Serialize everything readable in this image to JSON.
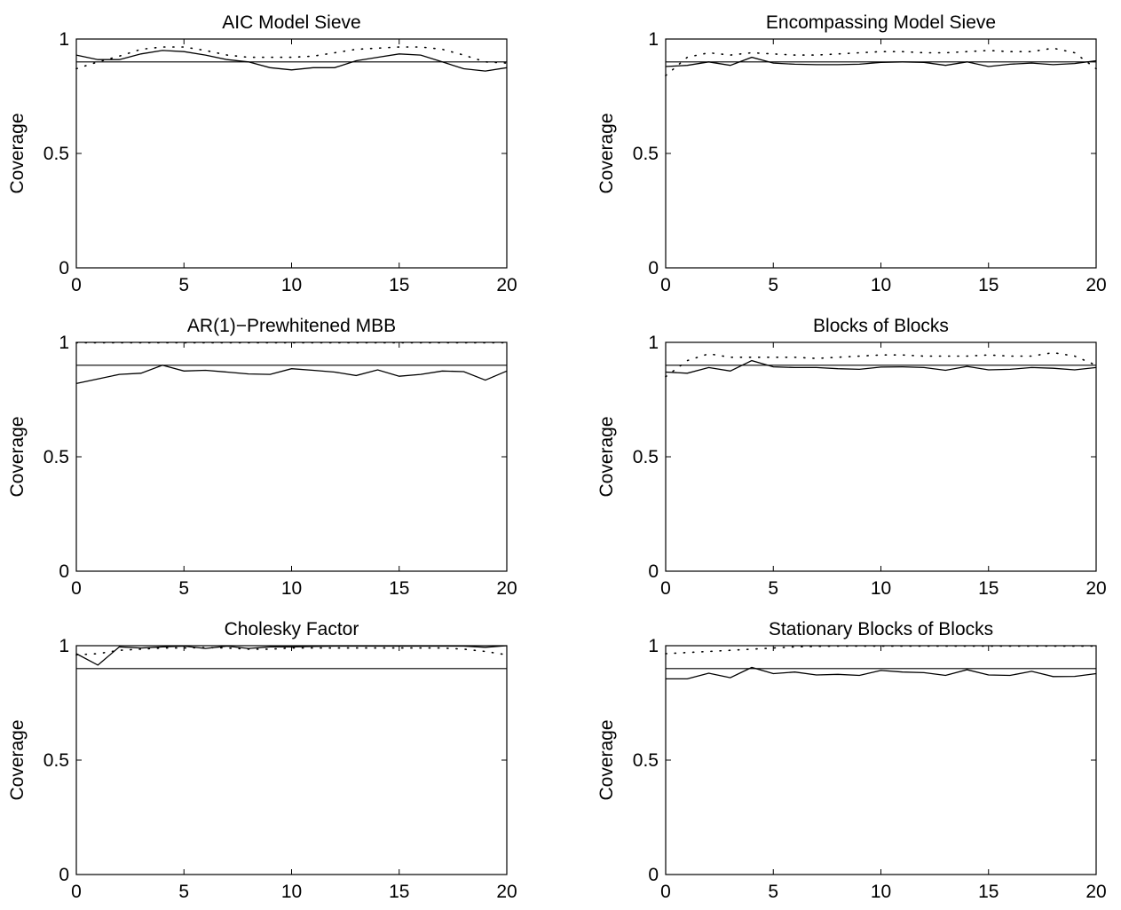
{
  "figure": {
    "background": "#ffffff",
    "line_color": "#000000"
  },
  "chart_data": [
    {
      "type": "line",
      "title": "AIC Model Sieve",
      "xlabel": "",
      "ylabel": "Coverage",
      "xlim": [
        0,
        20
      ],
      "ylim": [
        0,
        1
      ],
      "xticks": [
        "0",
        "5",
        "10",
        "15",
        "20"
      ],
      "yticks": [
        "0",
        "0.5",
        "1"
      ],
      "grid": false,
      "reference_line": 0.9,
      "series": [
        {
          "style": "solid",
          "x": [
            0,
            1,
            2,
            3,
            4,
            5,
            6,
            7,
            8,
            9,
            10,
            11,
            12,
            13,
            14,
            15,
            16,
            17,
            18,
            19,
            20
          ],
          "values": [
            0.93,
            0.91,
            0.91,
            0.935,
            0.95,
            0.945,
            0.93,
            0.91,
            0.9,
            0.875,
            0.865,
            0.875,
            0.875,
            0.905,
            0.92,
            0.935,
            0.93,
            0.9,
            0.87,
            0.86,
            0.875
          ]
        },
        {
          "style": "dotted",
          "x": [
            0,
            1,
            2,
            3,
            4,
            5,
            6,
            7,
            8,
            9,
            10,
            11,
            12,
            13,
            14,
            15,
            16,
            17,
            18,
            19,
            20
          ],
          "values": [
            0.87,
            0.9,
            0.925,
            0.955,
            0.965,
            0.965,
            0.95,
            0.93,
            0.92,
            0.92,
            0.92,
            0.925,
            0.94,
            0.955,
            0.96,
            0.965,
            0.965,
            0.955,
            0.93,
            0.9,
            0.895
          ]
        }
      ]
    },
    {
      "type": "line",
      "title": "Encompassing Model Sieve",
      "xlabel": "",
      "ylabel": "Coverage",
      "xlim": [
        0,
        20
      ],
      "ylim": [
        0,
        1
      ],
      "xticks": [
        "0",
        "5",
        "10",
        "15",
        "20"
      ],
      "yticks": [
        "0",
        "0.5",
        "1"
      ],
      "grid": false,
      "reference_line": 0.9,
      "series": [
        {
          "style": "solid",
          "x": [
            0,
            1,
            2,
            3,
            4,
            5,
            6,
            7,
            8,
            9,
            10,
            11,
            12,
            13,
            14,
            15,
            16,
            17,
            18,
            19,
            20
          ],
          "values": [
            0.88,
            0.885,
            0.9,
            0.885,
            0.92,
            0.895,
            0.89,
            0.888,
            0.888,
            0.89,
            0.898,
            0.9,
            0.898,
            0.885,
            0.9,
            0.88,
            0.89,
            0.895,
            0.888,
            0.893,
            0.905
          ]
        },
        {
          "style": "dotted",
          "x": [
            0,
            1,
            2,
            3,
            4,
            5,
            6,
            7,
            8,
            9,
            10,
            11,
            12,
            13,
            14,
            15,
            16,
            17,
            18,
            19,
            20
          ],
          "values": [
            0.84,
            0.92,
            0.94,
            0.93,
            0.94,
            0.935,
            0.93,
            0.93,
            0.935,
            0.94,
            0.945,
            0.945,
            0.94,
            0.94,
            0.945,
            0.95,
            0.945,
            0.945,
            0.96,
            0.94,
            0.87
          ]
        }
      ]
    },
    {
      "type": "line",
      "title": "AR(1)−Prewhitened MBB",
      "xlabel": "",
      "ylabel": "Coverage",
      "xlim": [
        0,
        20
      ],
      "ylim": [
        0,
        1
      ],
      "xticks": [
        "0",
        "5",
        "10",
        "15",
        "20"
      ],
      "yticks": [
        "0",
        "0.5",
        "1"
      ],
      "grid": false,
      "reference_line": 0.9,
      "series": [
        {
          "style": "solid",
          "x": [
            0,
            1,
            2,
            3,
            4,
            5,
            6,
            7,
            8,
            9,
            10,
            11,
            12,
            13,
            14,
            15,
            16,
            17,
            18,
            19,
            20
          ],
          "values": [
            0.82,
            0.84,
            0.86,
            0.865,
            0.9,
            0.875,
            0.878,
            0.87,
            0.862,
            0.86,
            0.885,
            0.878,
            0.87,
            0.855,
            0.88,
            0.852,
            0.86,
            0.875,
            0.872,
            0.835,
            0.875
          ]
        },
        {
          "style": "dotted",
          "x": [
            0,
            1,
            2,
            3,
            4,
            5,
            6,
            7,
            8,
            9,
            10,
            11,
            12,
            13,
            14,
            15,
            16,
            17,
            18,
            19,
            20
          ],
          "values": [
            0.998,
            0.998,
            0.998,
            0.998,
            0.998,
            0.998,
            0.998,
            0.998,
            0.998,
            0.998,
            0.998,
            0.998,
            0.998,
            0.998,
            0.998,
            0.998,
            0.998,
            0.998,
            0.998,
            0.998,
            0.998
          ]
        }
      ]
    },
    {
      "type": "line",
      "title": "Blocks of Blocks",
      "xlabel": "",
      "ylabel": "Coverage",
      "xlim": [
        0,
        20
      ],
      "ylim": [
        0,
        1
      ],
      "xticks": [
        "0",
        "5",
        "10",
        "15",
        "20"
      ],
      "yticks": [
        "0",
        "0.5",
        "1"
      ],
      "grid": false,
      "reference_line": 0.9,
      "series": [
        {
          "style": "solid",
          "x": [
            0,
            1,
            2,
            3,
            4,
            5,
            6,
            7,
            8,
            9,
            10,
            11,
            12,
            13,
            14,
            15,
            16,
            17,
            18,
            19,
            20
          ],
          "values": [
            0.87,
            0.865,
            0.89,
            0.875,
            0.92,
            0.893,
            0.89,
            0.89,
            0.885,
            0.882,
            0.892,
            0.893,
            0.89,
            0.878,
            0.895,
            0.88,
            0.882,
            0.89,
            0.887,
            0.88,
            0.89
          ]
        },
        {
          "style": "dotted",
          "x": [
            0,
            1,
            2,
            3,
            4,
            5,
            6,
            7,
            8,
            9,
            10,
            11,
            12,
            13,
            14,
            15,
            16,
            17,
            18,
            19,
            20
          ],
          "values": [
            0.85,
            0.92,
            0.95,
            0.935,
            0.935,
            0.935,
            0.935,
            0.93,
            0.935,
            0.94,
            0.945,
            0.945,
            0.94,
            0.94,
            0.94,
            0.945,
            0.94,
            0.94,
            0.955,
            0.94,
            0.9
          ]
        }
      ]
    },
    {
      "type": "line",
      "title": "Cholesky Factor",
      "xlabel": "",
      "ylabel": "Coverage",
      "xlim": [
        0,
        20
      ],
      "ylim": [
        0,
        1
      ],
      "xticks": [
        "0",
        "5",
        "10",
        "15",
        "20"
      ],
      "yticks": [
        "0",
        "0.5",
        "1"
      ],
      "grid": false,
      "reference_line": 0.9,
      "series": [
        {
          "style": "solid",
          "x": [
            0,
            1,
            2,
            3,
            4,
            5,
            6,
            7,
            8,
            9,
            10,
            11,
            12,
            13,
            14,
            15,
            16,
            17,
            18,
            19,
            20
          ],
          "values": [
            0.965,
            0.915,
            0.995,
            0.99,
            0.995,
            0.998,
            0.988,
            0.998,
            0.988,
            0.995,
            0.995,
            0.997,
            0.998,
            0.998,
            0.998,
            0.998,
            0.998,
            0.998,
            0.998,
            0.993,
            1.0
          ]
        },
        {
          "style": "dotted",
          "x": [
            0,
            1,
            2,
            3,
            4,
            5,
            6,
            7,
            8,
            9,
            10,
            11,
            12,
            13,
            14,
            15,
            16,
            17,
            18,
            19,
            20
          ],
          "values": [
            0.96,
            0.965,
            0.98,
            0.985,
            0.99,
            0.99,
            0.992,
            0.99,
            0.985,
            0.985,
            0.99,
            0.99,
            0.99,
            0.99,
            0.99,
            0.99,
            0.99,
            0.99,
            0.985,
            0.975,
            0.96
          ]
        }
      ]
    },
    {
      "type": "line",
      "title": "Stationary Blocks of Blocks",
      "xlabel": "",
      "ylabel": "Coverage",
      "xlim": [
        0,
        20
      ],
      "ylim": [
        0,
        1
      ],
      "xticks": [
        "0",
        "5",
        "10",
        "15",
        "20"
      ],
      "yticks": [
        "0",
        "0.5",
        "1"
      ],
      "grid": false,
      "reference_line": 0.9,
      "series": [
        {
          "style": "solid",
          "x": [
            0,
            1,
            2,
            3,
            4,
            5,
            6,
            7,
            8,
            9,
            10,
            11,
            12,
            13,
            14,
            15,
            16,
            17,
            18,
            19,
            20
          ],
          "values": [
            0.855,
            0.855,
            0.88,
            0.86,
            0.905,
            0.878,
            0.885,
            0.872,
            0.875,
            0.87,
            0.892,
            0.885,
            0.882,
            0.87,
            0.895,
            0.872,
            0.87,
            0.888,
            0.865,
            0.866,
            0.878
          ]
        },
        {
          "style": "dotted",
          "x": [
            0,
            1,
            2,
            3,
            4,
            5,
            6,
            7,
            8,
            9,
            10,
            11,
            12,
            13,
            14,
            15,
            16,
            17,
            18,
            19,
            20
          ],
          "values": [
            0.965,
            0.97,
            0.975,
            0.98,
            0.985,
            0.99,
            0.995,
            0.997,
            0.998,
            0.998,
            0.998,
            0.998,
            0.998,
            0.998,
            0.998,
            0.998,
            0.998,
            0.998,
            0.998,
            0.998,
            0.998
          ]
        }
      ]
    }
  ]
}
